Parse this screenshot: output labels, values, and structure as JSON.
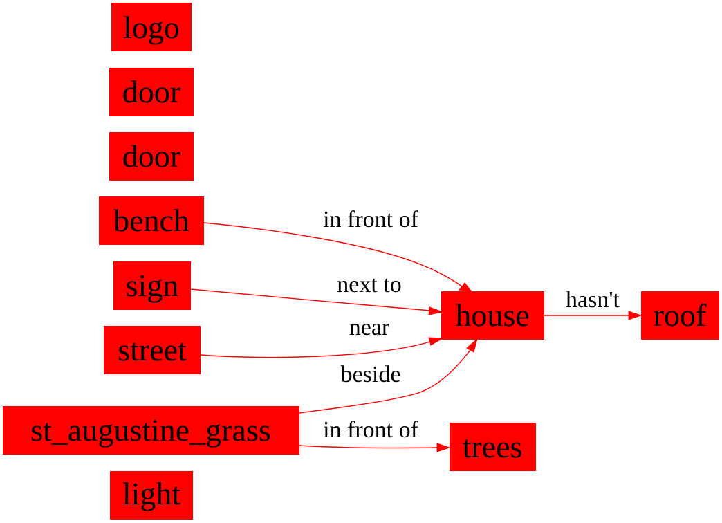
{
  "diagram": {
    "nodes": [
      {
        "id": "logo",
        "label": "logo"
      },
      {
        "id": "door1",
        "label": "door"
      },
      {
        "id": "door2",
        "label": "door"
      },
      {
        "id": "bench",
        "label": "bench"
      },
      {
        "id": "sign",
        "label": "sign"
      },
      {
        "id": "street",
        "label": "street"
      },
      {
        "id": "grass",
        "label": "st_augustine_grass"
      },
      {
        "id": "light",
        "label": "light"
      },
      {
        "id": "house",
        "label": "house"
      },
      {
        "id": "roof",
        "label": "roof"
      },
      {
        "id": "trees",
        "label": "trees"
      }
    ],
    "edges": [
      {
        "from": "bench",
        "to": "house",
        "label": "in front of"
      },
      {
        "from": "sign",
        "to": "house",
        "label": "next to"
      },
      {
        "from": "street",
        "to": "house",
        "label": "near"
      },
      {
        "from": "grass",
        "to": "house",
        "label": "beside"
      },
      {
        "from": "grass",
        "to": "trees",
        "label": "in front of"
      },
      {
        "from": "house",
        "to": "roof",
        "label": "hasn't"
      }
    ],
    "colors": {
      "node_fill": "#ff0000",
      "edge": "#ff0000",
      "text": "#000000"
    }
  }
}
